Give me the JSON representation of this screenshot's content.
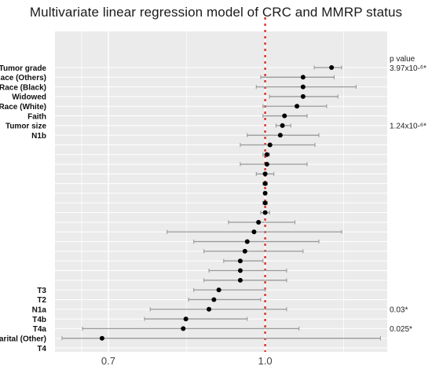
{
  "chart_data": {
    "type": "forest",
    "title": "Multivariate linear regression model of CRC and MMRP status",
    "xlabel": "",
    "ylabel": "",
    "x_scale": "log",
    "xlim": [
      0.62,
      1.32
    ],
    "xticks": [
      0.7,
      1.0
    ],
    "xtick_labels": [
      "0.7",
      "1.0"
    ],
    "reference_line": 1.0,
    "grid": true,
    "p_value_header": "p value",
    "rows": [
      {
        "label": "Tumor grade",
        "estimate": 1.163,
        "ci_low": 1.118,
        "ci_high": 1.19,
        "p": "3.97x10-⁶*"
      },
      {
        "label": "Race (Others)",
        "estimate": 1.09,
        "ci_low": 0.99,
        "ci_high": 1.17,
        "p": ""
      },
      {
        "label": "Race (Black)",
        "estimate": 1.09,
        "ci_low": 0.98,
        "ci_high": 1.23,
        "p": ""
      },
      {
        "label": "Widowed",
        "estimate": 1.09,
        "ci_low": 1.01,
        "ci_high": 1.18,
        "p": ""
      },
      {
        "label": "Race (White)",
        "estimate": 1.075,
        "ci_low": 0.995,
        "ci_high": 1.15,
        "p": ""
      },
      {
        "label": "Faith",
        "estimate": 1.045,
        "ci_low": 0.995,
        "ci_high": 1.1,
        "p": ""
      },
      {
        "label": "Tumor size",
        "estimate": 1.04,
        "ci_low": 1.025,
        "ci_high": 1.06,
        "p": "1.24x10-⁶*"
      },
      {
        "label": "N1b",
        "estimate": 1.035,
        "ci_low": 0.96,
        "ci_high": 1.13,
        "p": ""
      },
      {
        "label": "",
        "estimate": 1.011,
        "ci_low": 0.945,
        "ci_high": 1.12,
        "p": ""
      },
      {
        "label": "",
        "estimate": 1.004,
        "ci_low": 0.995,
        "ci_high": 1.01,
        "p": ""
      },
      {
        "label": "",
        "estimate": 1.004,
        "ci_low": 0.945,
        "ci_high": 1.1,
        "p": ""
      },
      {
        "label": "",
        "estimate": 1.0,
        "ci_low": 0.98,
        "ci_high": 1.02,
        "p": ""
      },
      {
        "label": "",
        "estimate": 1.0,
        "ci_low": 0.995,
        "ci_high": 1.005,
        "p": ""
      },
      {
        "label": "",
        "estimate": 1.0,
        "ci_low": 0.997,
        "ci_high": 1.003,
        "p": ""
      },
      {
        "label": "",
        "estimate": 1.0,
        "ci_low": 0.995,
        "ci_high": 1.005,
        "p": ""
      },
      {
        "label": "",
        "estimate": 1.0,
        "ci_low": 0.99,
        "ci_high": 1.01,
        "p": ""
      },
      {
        "label": "",
        "estimate": 0.985,
        "ci_low": 0.92,
        "ci_high": 1.07,
        "p": ""
      },
      {
        "label": "",
        "estimate": 0.975,
        "ci_low": 0.8,
        "ci_high": 1.19,
        "p": ""
      },
      {
        "label": "",
        "estimate": 0.96,
        "ci_low": 0.85,
        "ci_high": 1.13,
        "p": ""
      },
      {
        "label": "",
        "estimate": 0.955,
        "ci_low": 0.87,
        "ci_high": 1.09,
        "p": ""
      },
      {
        "label": "",
        "estimate": 0.945,
        "ci_low": 0.91,
        "ci_high": 0.995,
        "p": ""
      },
      {
        "label": "",
        "estimate": 0.945,
        "ci_low": 0.88,
        "ci_high": 1.05,
        "p": ""
      },
      {
        "label": "",
        "estimate": 0.945,
        "ci_low": 0.87,
        "ci_high": 1.05,
        "p": ""
      },
      {
        "label": "T3",
        "estimate": 0.9,
        "ci_low": 0.85,
        "ci_high": 1.0,
        "p": ""
      },
      {
        "label": "T2",
        "estimate": 0.89,
        "ci_low": 0.84,
        "ci_high": 0.99,
        "p": ""
      },
      {
        "label": "N1a",
        "estimate": 0.88,
        "ci_low": 0.77,
        "ci_high": 1.05,
        "p": "0.03*"
      },
      {
        "label": "T4b",
        "estimate": 0.835,
        "ci_low": 0.76,
        "ci_high": 0.96,
        "p": ""
      },
      {
        "label": "T4a",
        "estimate": 0.83,
        "ci_low": 0.66,
        "ci_high": 1.08,
        "p": "0.025*"
      },
      {
        "label": "Marital (Other)",
        "estimate": 0.69,
        "ci_low": 0.63,
        "ci_high": 1.3,
        "p": ""
      },
      {
        "label": "T4",
        "estimate": null,
        "ci_low": null,
        "ci_high": null,
        "p": ""
      }
    ],
    "colors": {
      "panel": "#ebebeb",
      "grid": "#ffffff",
      "ci": "#9a9a9a",
      "point": "#000000",
      "reference": "#e0332a"
    }
  }
}
